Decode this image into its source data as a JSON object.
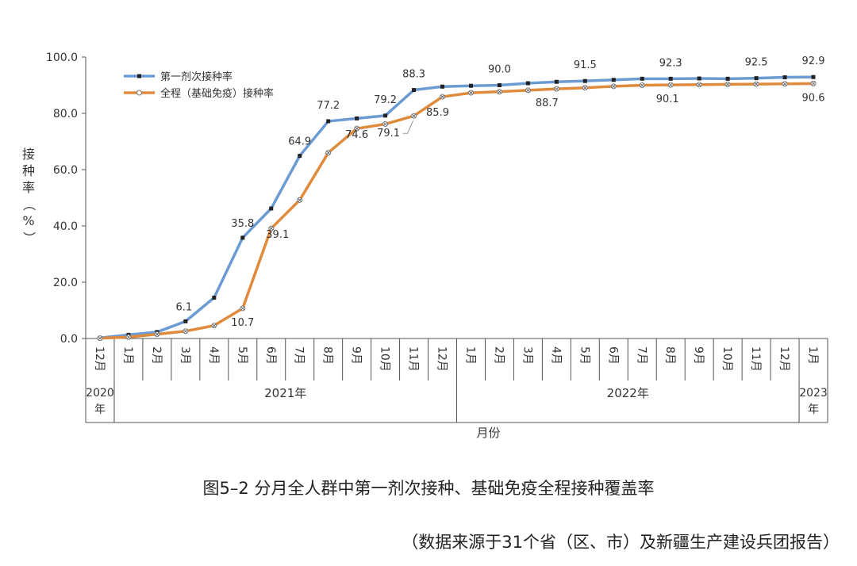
{
  "chart_data": {
    "type": "line",
    "ylabel": "接种率（%）",
    "xlabel": "月份",
    "ylim": [
      0,
      100
    ],
    "y_ticks": [
      "0.0",
      "20.0",
      "40.0",
      "60.0",
      "80.0",
      "100.0"
    ],
    "month_labels": [
      "12月",
      "1月",
      "2月",
      "3月",
      "4月",
      "5月",
      "6月",
      "7月",
      "8月",
      "9月",
      "10月",
      "11月",
      "12月",
      "1月",
      "2月",
      "3月",
      "4月",
      "5月",
      "6月",
      "7月",
      "8月",
      "9月",
      "10月",
      "11月",
      "12月",
      "1月"
    ],
    "year_groups": [
      {
        "label": "2020年",
        "start": 0,
        "end": 0
      },
      {
        "label": "2021年",
        "start": 1,
        "end": 12
      },
      {
        "label": "2022年",
        "start": 13,
        "end": 24
      },
      {
        "label": "2023年",
        "start": 25,
        "end": 25
      }
    ],
    "series": [
      {
        "name": "第一剂次接种率",
        "color": "#6b9bd2",
        "values": [
          0.2,
          1.3,
          2.3,
          6.1,
          14.5,
          35.8,
          46.2,
          64.9,
          77.2,
          78.2,
          79.2,
          88.3,
          89.5,
          89.8,
          90.0,
          90.7,
          91.2,
          91.5,
          91.9,
          92.3,
          92.3,
          92.4,
          92.3,
          92.5,
          92.8,
          92.9
        ],
        "labels": {
          "3": "6.1",
          "5": "35.8",
          "7": "64.9",
          "8": "77.2",
          "10": "79.2",
          "11": "88.3",
          "14": "90.0",
          "17": "91.5",
          "20": "92.3",
          "23": "92.5",
          "25": "92.9"
        }
      },
      {
        "name": "全程（基础免疫）接种率",
        "color": "#e08a3c",
        "values": [
          0.1,
          0.5,
          1.5,
          2.6,
          4.6,
          10.7,
          39.1,
          49.2,
          66.0,
          74.6,
          76.2,
          79.1,
          85.9,
          87.3,
          87.7,
          88.2,
          88.7,
          89.1,
          89.6,
          90.0,
          90.1,
          90.2,
          90.3,
          90.4,
          90.5,
          90.6
        ],
        "labels": {
          "5": "10.7",
          "6": "39.1",
          "9": "74.6",
          "11": "79.1",
          "12": "85.9",
          "16": "88.7",
          "20": "90.1",
          "25": "90.6"
        }
      }
    ]
  },
  "caption": "图5–2 分月全人群中第一剂次接种、基础免疫全程接种覆盖率",
  "source": "（数据来源于31个省（区、市）及新疆生产建设兵团报告）"
}
